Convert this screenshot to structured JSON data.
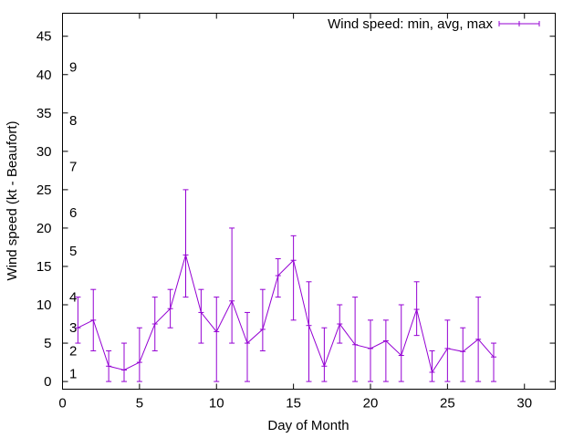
{
  "chart_data": {
    "type": "line",
    "xlabel": "Day of Month",
    "ylabel": "Wind speed (kt - Beaufort)",
    "xlim": [
      0,
      32
    ],
    "ylim": [
      -1,
      48
    ],
    "xticks": [
      0,
      5,
      10,
      15,
      20,
      25,
      30
    ],
    "yticks": [
      0,
      5,
      10,
      15,
      20,
      25,
      30,
      35,
      40,
      45
    ],
    "grid": false,
    "legend_position": "top-right",
    "series": [
      {
        "name": "Wind speed: min, avg, max",
        "color": "#9400d3",
        "x": [
          1,
          2,
          3,
          4,
          5,
          6,
          7,
          8,
          9,
          10,
          11,
          12,
          13,
          14,
          15,
          16,
          17,
          18,
          19,
          20,
          21,
          22,
          23,
          24,
          25,
          26,
          27,
          28
        ],
        "avg": [
          7,
          8,
          2,
          1.5,
          2.5,
          7.5,
          9.5,
          16.5,
          9,
          6.5,
          10.5,
          5,
          6.8,
          13.8,
          15.8,
          7.3,
          2,
          7.5,
          4.8,
          4.3,
          5.3,
          3.4,
          9.4,
          1.2,
          4.3,
          3.9,
          5.5,
          3.2
        ],
        "min": [
          5,
          4,
          0,
          0,
          0,
          4,
          7,
          11,
          5,
          0,
          5,
          0,
          4,
          11,
          8,
          0,
          0,
          5,
          0,
          0,
          0,
          0,
          6,
          0,
          0,
          0,
          0,
          0
        ],
        "max": [
          11,
          12,
          4,
          5,
          7,
          11,
          12,
          25,
          12,
          11,
          20,
          9,
          12,
          16,
          19,
          13,
          7,
          10,
          11,
          8,
          8,
          10,
          13,
          4,
          8,
          7,
          11,
          5
        ]
      }
    ],
    "beaufort_scale": [
      {
        "label": "1",
        "y": 1
      },
      {
        "label": "2",
        "y": 4
      },
      {
        "label": "3",
        "y": 7
      },
      {
        "label": "4",
        "y": 11
      },
      {
        "label": "5",
        "y": 17
      },
      {
        "label": "6",
        "y": 22
      },
      {
        "label": "7",
        "y": 28
      },
      {
        "label": "8",
        "y": 34
      },
      {
        "label": "9",
        "y": 41
      }
    ]
  }
}
